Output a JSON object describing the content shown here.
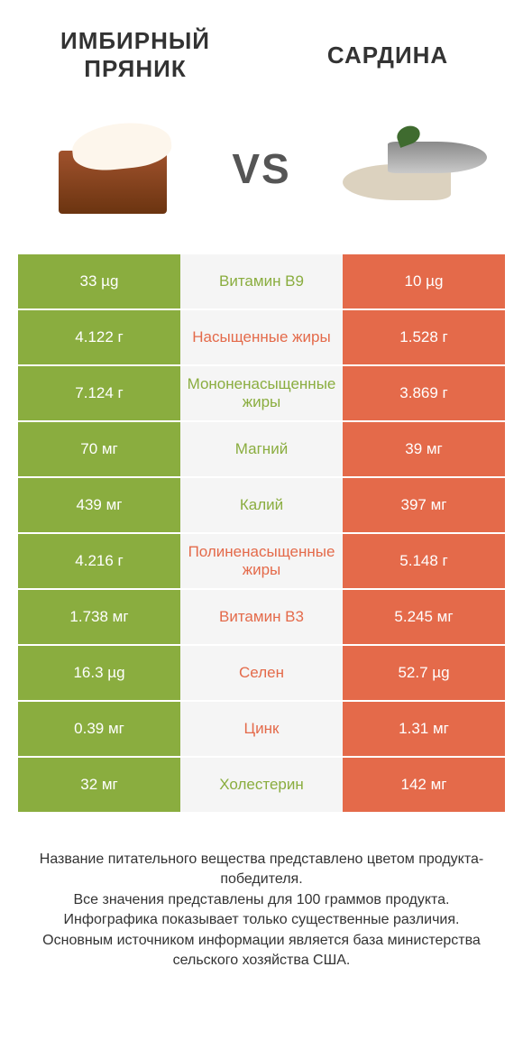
{
  "header": {
    "left_title": "ИМБИРНЫЙ ПРЯНИК",
    "right_title": "САРДИНА",
    "vs": "VS"
  },
  "colors": {
    "green": "#8aad3f",
    "orange": "#e46a4a",
    "mid_bg": "#f5f5f5",
    "text": "#333333",
    "value_text": "#ffffff"
  },
  "rows": [
    {
      "left": "33 µg",
      "mid": "Витамин B9",
      "right": "10 µg",
      "winner": "left"
    },
    {
      "left": "4.122 г",
      "mid": "Насыщенные жиры",
      "right": "1.528 г",
      "winner": "right"
    },
    {
      "left": "7.124 г",
      "mid": "Мононенасыщенные жиры",
      "right": "3.869 г",
      "winner": "left"
    },
    {
      "left": "70 мг",
      "mid": "Магний",
      "right": "39 мг",
      "winner": "left"
    },
    {
      "left": "439 мг",
      "mid": "Калий",
      "right": "397 мг",
      "winner": "left"
    },
    {
      "left": "4.216 г",
      "mid": "Полиненасыщенные жиры",
      "right": "5.148 г",
      "winner": "right"
    },
    {
      "left": "1.738 мг",
      "mid": "Витамин B3",
      "right": "5.245 мг",
      "winner": "right"
    },
    {
      "left": "16.3 µg",
      "mid": "Селен",
      "right": "52.7 µg",
      "winner": "right"
    },
    {
      "left": "0.39 мг",
      "mid": "Цинк",
      "right": "1.31 мг",
      "winner": "right"
    },
    {
      "left": "32 мг",
      "mid": "Холестерин",
      "right": "142 мг",
      "winner": "left"
    }
  ],
  "footer": {
    "line1": "Название питательного вещества представлено цветом продукта-победителя.",
    "line2": "Все значения представлены для 100 граммов продукта.",
    "line3": "Инфографика показывает только существенные различия.",
    "line4": "Основным источником информации является база министерства сельского хозяйства США."
  }
}
